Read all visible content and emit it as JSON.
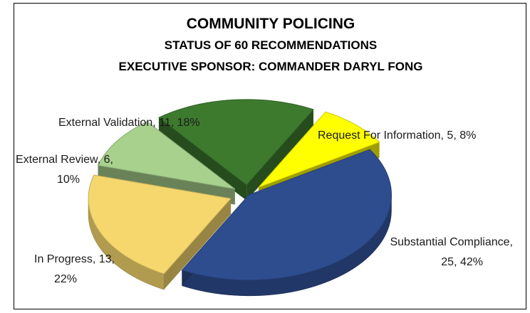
{
  "chart_data": {
    "type": "pie",
    "title": "COMMUNITY POLICING",
    "subtitles": [
      "STATUS OF 60 RECOMMENDATIONS",
      "EXECUTIVE SPONSOR: COMMANDER DARYL FONG"
    ],
    "slices": [
      {
        "name": "Request For Information",
        "value": 5,
        "percent": "8%",
        "color": "#ffff00",
        "label_lines": [
          "Request For Information, 5, 8%"
        ]
      },
      {
        "name": "Substantial Compliance",
        "value": 25,
        "percent": "42%",
        "color": "#2e4d8f",
        "label_lines": [
          "Substantial Compliance,",
          "25, 42%"
        ]
      },
      {
        "name": "In Progress",
        "value": 13,
        "percent": "22%",
        "color": "#f5d76e",
        "label_lines": [
          "In Progress, 13,",
          "22%"
        ]
      },
      {
        "name": "External Review",
        "value": 6,
        "percent": "10%",
        "color": "#a9d18e",
        "label_lines": [
          "External Review, 6,",
          "10%"
        ]
      },
      {
        "name": "External Validation",
        "value": 11,
        "percent": "18%",
        "color": "#3d7a2e",
        "label_lines": [
          "External Validation, 11, 18%"
        ]
      }
    ]
  }
}
